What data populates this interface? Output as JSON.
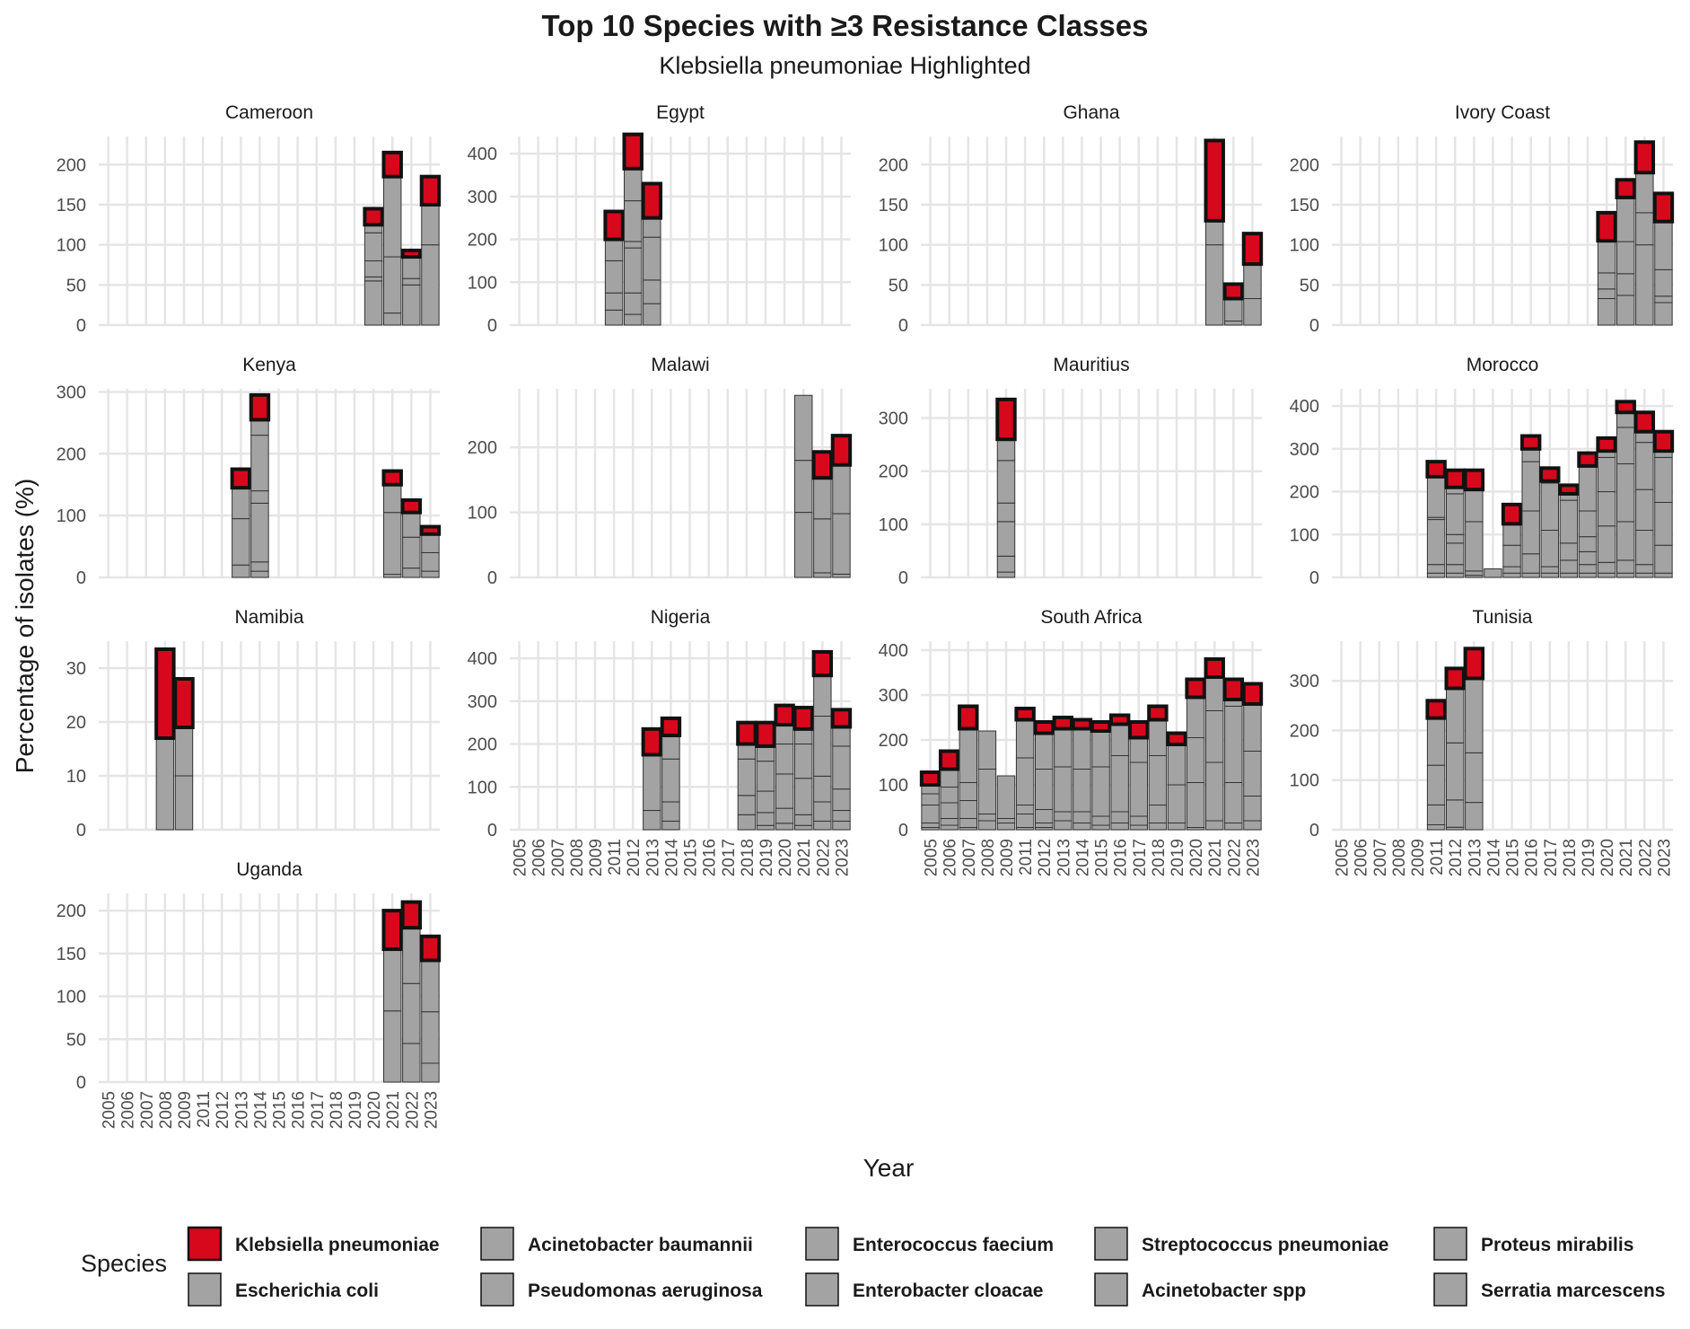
{
  "chart_data": {
    "type": "bar",
    "stacked": true,
    "faceted": true,
    "title": "Top 10 Species with ≥3 Resistance Classes",
    "subtitle": "Klebsiella pneumoniae Highlighted",
    "xlabel": "Year",
    "ylabel": "Percentage of isolates (%)",
    "legend_title": "Species",
    "legend_position": "bottom",
    "highlight_color": "#d7081c",
    "other_color": "#a3a3a3",
    "grid": true,
    "categories": [
      "2005",
      "2006",
      "2007",
      "2008",
      "2009",
      "2011",
      "2012",
      "2013",
      "2014",
      "2015",
      "2016",
      "2017",
      "2018",
      "2019",
      "2020",
      "2021",
      "2022",
      "2023"
    ],
    "species": [
      "Klebsiella pneumoniae",
      "Acinetobacter baumannii",
      "Enterococcus faecium",
      "Streptococcus pneumoniae",
      "Proteus mirabilis",
      "Escherichia coli",
      "Pseudomonas aeruginosa",
      "Enterobacter cloacae",
      "Acinetobacter spp",
      "Serratia marcescens"
    ],
    "facets": [
      {
        "name": "Cameroon",
        "yticks": [
          0,
          50,
          100,
          150,
          200
        ],
        "ymax": 235,
        "bars": [
          {
            "x": "2020",
            "segments": [
              55,
              5,
              20,
              35,
              10
            ],
            "highlight": 20
          },
          {
            "x": "2021",
            "segments": [
              15,
              70,
              100
            ],
            "highlight": 30
          },
          {
            "x": "2022",
            "segments": [
              50,
              8,
              27
            ],
            "highlight": 8
          },
          {
            "x": "2023",
            "segments": [
              100,
              50
            ],
            "highlight": 35
          }
        ]
      },
      {
        "name": "Egypt",
        "yticks": [
          0,
          100,
          200,
          300,
          400
        ],
        "ymax": 440,
        "bars": [
          {
            "x": "2011",
            "segments": [
              35,
              40,
              75,
              50
            ],
            "highlight": 65
          },
          {
            "x": "2012",
            "segments": [
              25,
              50,
              105,
              15,
              95,
              75
            ],
            "highlight": 80
          },
          {
            "x": "2013",
            "segments": [
              50,
              55,
              100,
              45
            ],
            "highlight": 80
          }
        ]
      },
      {
        "name": "Ghana",
        "yticks": [
          0,
          50,
          100,
          150,
          200
        ],
        "ymax": 235,
        "bars": [
          {
            "x": "2021",
            "segments": [
              100,
              30
            ],
            "highlight": 100
          },
          {
            "x": "2022",
            "segments": [
              5,
              28
            ],
            "highlight": 18
          },
          {
            "x": "2023",
            "segments": [
              33,
              43
            ],
            "highlight": 38
          }
        ]
      },
      {
        "name": "Ivory Coast",
        "yticks": [
          0,
          50,
          100,
          150,
          200
        ],
        "ymax": 235,
        "bars": [
          {
            "x": "2020",
            "segments": [
              33,
              12,
              20,
              40
            ],
            "highlight": 35
          },
          {
            "x": "2021",
            "segments": [
              37,
              27,
              40,
              55
            ],
            "highlight": 22
          },
          {
            "x": "2022",
            "segments": [
              100,
              40,
              50
            ],
            "highlight": 38
          },
          {
            "x": "2023",
            "segments": [
              28,
              8,
              33,
              60
            ],
            "highlight": 35
          }
        ]
      },
      {
        "name": "Kenya",
        "yticks": [
          0,
          100,
          200,
          300
        ],
        "ymax": 305,
        "bars": [
          {
            "x": "2013",
            "segments": [
              20,
              75,
              50
            ],
            "highlight": 30
          },
          {
            "x": "2014",
            "segments": [
              10,
              15,
              95,
              20,
              90,
              25
            ],
            "highlight": 40
          },
          {
            "x": "2021",
            "segments": [
              5,
              100,
              45
            ],
            "highlight": 22
          },
          {
            "x": "2022",
            "segments": [
              15,
              50,
              40
            ],
            "highlight": 20
          },
          {
            "x": "2023",
            "segments": [
              10,
              30,
              30
            ],
            "highlight": 12
          }
        ]
      },
      {
        "name": "Malawi",
        "yticks": [
          0,
          100,
          200
        ],
        "ymax": 290,
        "bars": [
          {
            "x": "2021",
            "segments": [
              100,
              80,
              100
            ],
            "highlight": 0
          },
          {
            "x": "2022",
            "segments": [
              7,
              83,
              63
            ],
            "highlight": 40
          },
          {
            "x": "2023",
            "segments": [
              5,
              93,
              75
            ],
            "highlight": 45
          }
        ]
      },
      {
        "name": "Mauritius",
        "yticks": [
          0,
          100,
          200,
          300
        ],
        "ymax": 355,
        "bars": [
          {
            "x": "2009",
            "segments": [
              10,
              30,
              65,
              35,
              80,
              40
            ],
            "highlight": 75
          }
        ]
      },
      {
        "name": "Morocco",
        "yticks": [
          0,
          100,
          200,
          300,
          400
        ],
        "ymax": 440,
        "bars": [
          {
            "x": "2011",
            "segments": [
              10,
              20,
              105,
              5,
              95
            ],
            "highlight": 35
          },
          {
            "x": "2012",
            "segments": [
              10,
              20,
              50,
              20,
              95,
              15
            ],
            "highlight": 40
          },
          {
            "x": "2013",
            "segments": [
              5,
              10,
              115,
              75
            ],
            "highlight": 45
          },
          {
            "x": "2014",
            "segments": [
              20
            ],
            "highlight": 0
          },
          {
            "x": "2015",
            "segments": [
              10,
              15,
              50,
              50
            ],
            "highlight": 45
          },
          {
            "x": "2016",
            "segments": [
              10,
              45,
              100,
              115,
              30
            ],
            "highlight": 30
          },
          {
            "x": "2017",
            "segments": [
              10,
              15,
              85,
              110,
              5
            ],
            "highlight": 30
          },
          {
            "x": "2018",
            "segments": [
              10,
              30,
              40,
              100,
              15
            ],
            "highlight": 20
          },
          {
            "x": "2019",
            "segments": [
              10,
              20,
              30,
              35,
              60,
              105
            ],
            "highlight": 30
          },
          {
            "x": "2020",
            "segments": [
              10,
              25,
              85,
              80,
              80,
              15
            ],
            "highlight": 30
          },
          {
            "x": "2021",
            "segments": [
              10,
              30,
              90,
              135,
              85,
              35
            ],
            "highlight": 25
          },
          {
            "x": "2022",
            "segments": [
              10,
              20,
              80,
              95,
              110,
              25
            ],
            "highlight": 45
          },
          {
            "x": "2023",
            "segments": [
              10,
              65,
              100,
              105,
              15
            ],
            "highlight": 45
          }
        ]
      },
      {
        "name": "Namibia",
        "yticks": [
          0,
          10,
          20,
          30
        ],
        "ymax": 35,
        "bars": [
          {
            "x": "2008",
            "segments": [
              17
            ],
            "highlight": 16.5
          },
          {
            "x": "2009",
            "segments": [
              10,
              9
            ],
            "highlight": 9
          }
        ]
      },
      {
        "name": "Nigeria",
        "yticks": [
          0,
          100,
          200,
          300,
          400
        ],
        "ymax": 440,
        "bars": [
          {
            "x": "2013",
            "segments": [
              45,
              130
            ],
            "highlight": 60
          },
          {
            "x": "2014",
            "segments": [
              20,
              45,
              100,
              55
            ],
            "highlight": 40
          },
          {
            "x": "2018",
            "segments": [
              35,
              45,
              85,
              35
            ],
            "highlight": 50
          },
          {
            "x": "2019",
            "segments": [
              10,
              30,
              50,
              70,
              35
            ],
            "highlight": 55
          },
          {
            "x": "2020",
            "segments": [
              15,
              35,
              80,
              70,
              45
            ],
            "highlight": 45
          },
          {
            "x": "2021",
            "segments": [
              10,
              25,
              85,
              80,
              35
            ],
            "highlight": 50
          },
          {
            "x": "2022",
            "segments": [
              20,
              45,
              60,
              140,
              95
            ],
            "highlight": 55
          },
          {
            "x": "2023",
            "segments": [
              20,
              25,
              50,
              100,
              45
            ],
            "highlight": 40
          }
        ]
      },
      {
        "name": "South Africa",
        "yticks": [
          0,
          100,
          200,
          300,
          400
        ],
        "ymax": 420,
        "bars": [
          {
            "x": "2005",
            "segments": [
              5,
              10,
              40,
              25,
              20
            ],
            "highlight": 28
          },
          {
            "x": "2006",
            "segments": [
              10,
              15,
              35,
              35,
              40
            ],
            "highlight": 40
          },
          {
            "x": "2007",
            "segments": [
              5,
              20,
              40,
              40,
              120
            ],
            "highlight": 50
          },
          {
            "x": "2008",
            "segments": [
              20,
              15,
              100,
              85
            ],
            "highlight": 0
          },
          {
            "x": "2009",
            "segments": [
              15,
              10,
              95
            ],
            "highlight": 0
          },
          {
            "x": "2011",
            "segments": [
              5,
              30,
              20,
              105,
              85
            ],
            "highlight": 25
          },
          {
            "x": "2012",
            "segments": [
              5,
              10,
              30,
              90,
              80
            ],
            "highlight": 25
          },
          {
            "x": "2013",
            "segments": [
              20,
              20,
              100,
              85
            ],
            "highlight": 25
          },
          {
            "x": "2014",
            "segments": [
              15,
              25,
              95,
              90
            ],
            "highlight": 20
          },
          {
            "x": "2015",
            "segments": [
              10,
              20,
              110,
              80
            ],
            "highlight": 20
          },
          {
            "x": "2016",
            "segments": [
              15,
              25,
              125,
              70
            ],
            "highlight": 20
          },
          {
            "x": "2017",
            "segments": [
              10,
              20,
              120,
              55
            ],
            "highlight": 35
          },
          {
            "x": "2018",
            "segments": [
              15,
              40,
              110,
              80
            ],
            "highlight": 30
          },
          {
            "x": "2019",
            "segments": [
              15,
              85,
              90
            ],
            "highlight": 25
          },
          {
            "x": "2020",
            "segments": [
              5,
              100,
              100,
              90
            ],
            "highlight": 40
          },
          {
            "x": "2021",
            "segments": [
              20,
              130,
              115,
              75
            ],
            "highlight": 40
          },
          {
            "x": "2022",
            "segments": [
              15,
              90,
              170,
              15
            ],
            "highlight": 45
          },
          {
            "x": "2023",
            "segments": [
              20,
              55,
              100,
              105
            ],
            "highlight": 45
          }
        ]
      },
      {
        "name": "Tunisia",
        "yticks": [
          0,
          100,
          200,
          300
        ],
        "ymax": 380,
        "bars": [
          {
            "x": "2011",
            "segments": [
              10,
              40,
              80,
              95
            ],
            "highlight": 35
          },
          {
            "x": "2012",
            "segments": [
              5,
              55,
              115,
              110
            ],
            "highlight": 40
          },
          {
            "x": "2013",
            "segments": [
              55,
              100,
              150
            ],
            "highlight": 60
          }
        ]
      },
      {
        "name": "Uganda",
        "yticks": [
          0,
          50,
          100,
          150,
          200
        ],
        "ymax": 220,
        "bars": [
          {
            "x": "2021",
            "segments": [
              83,
              72
            ],
            "highlight": 45
          },
          {
            "x": "2022",
            "segments": [
              45,
              70,
              65
            ],
            "highlight": 30
          },
          {
            "x": "2023",
            "segments": [
              22,
              60,
              60
            ],
            "highlight": 28
          }
        ]
      }
    ]
  }
}
